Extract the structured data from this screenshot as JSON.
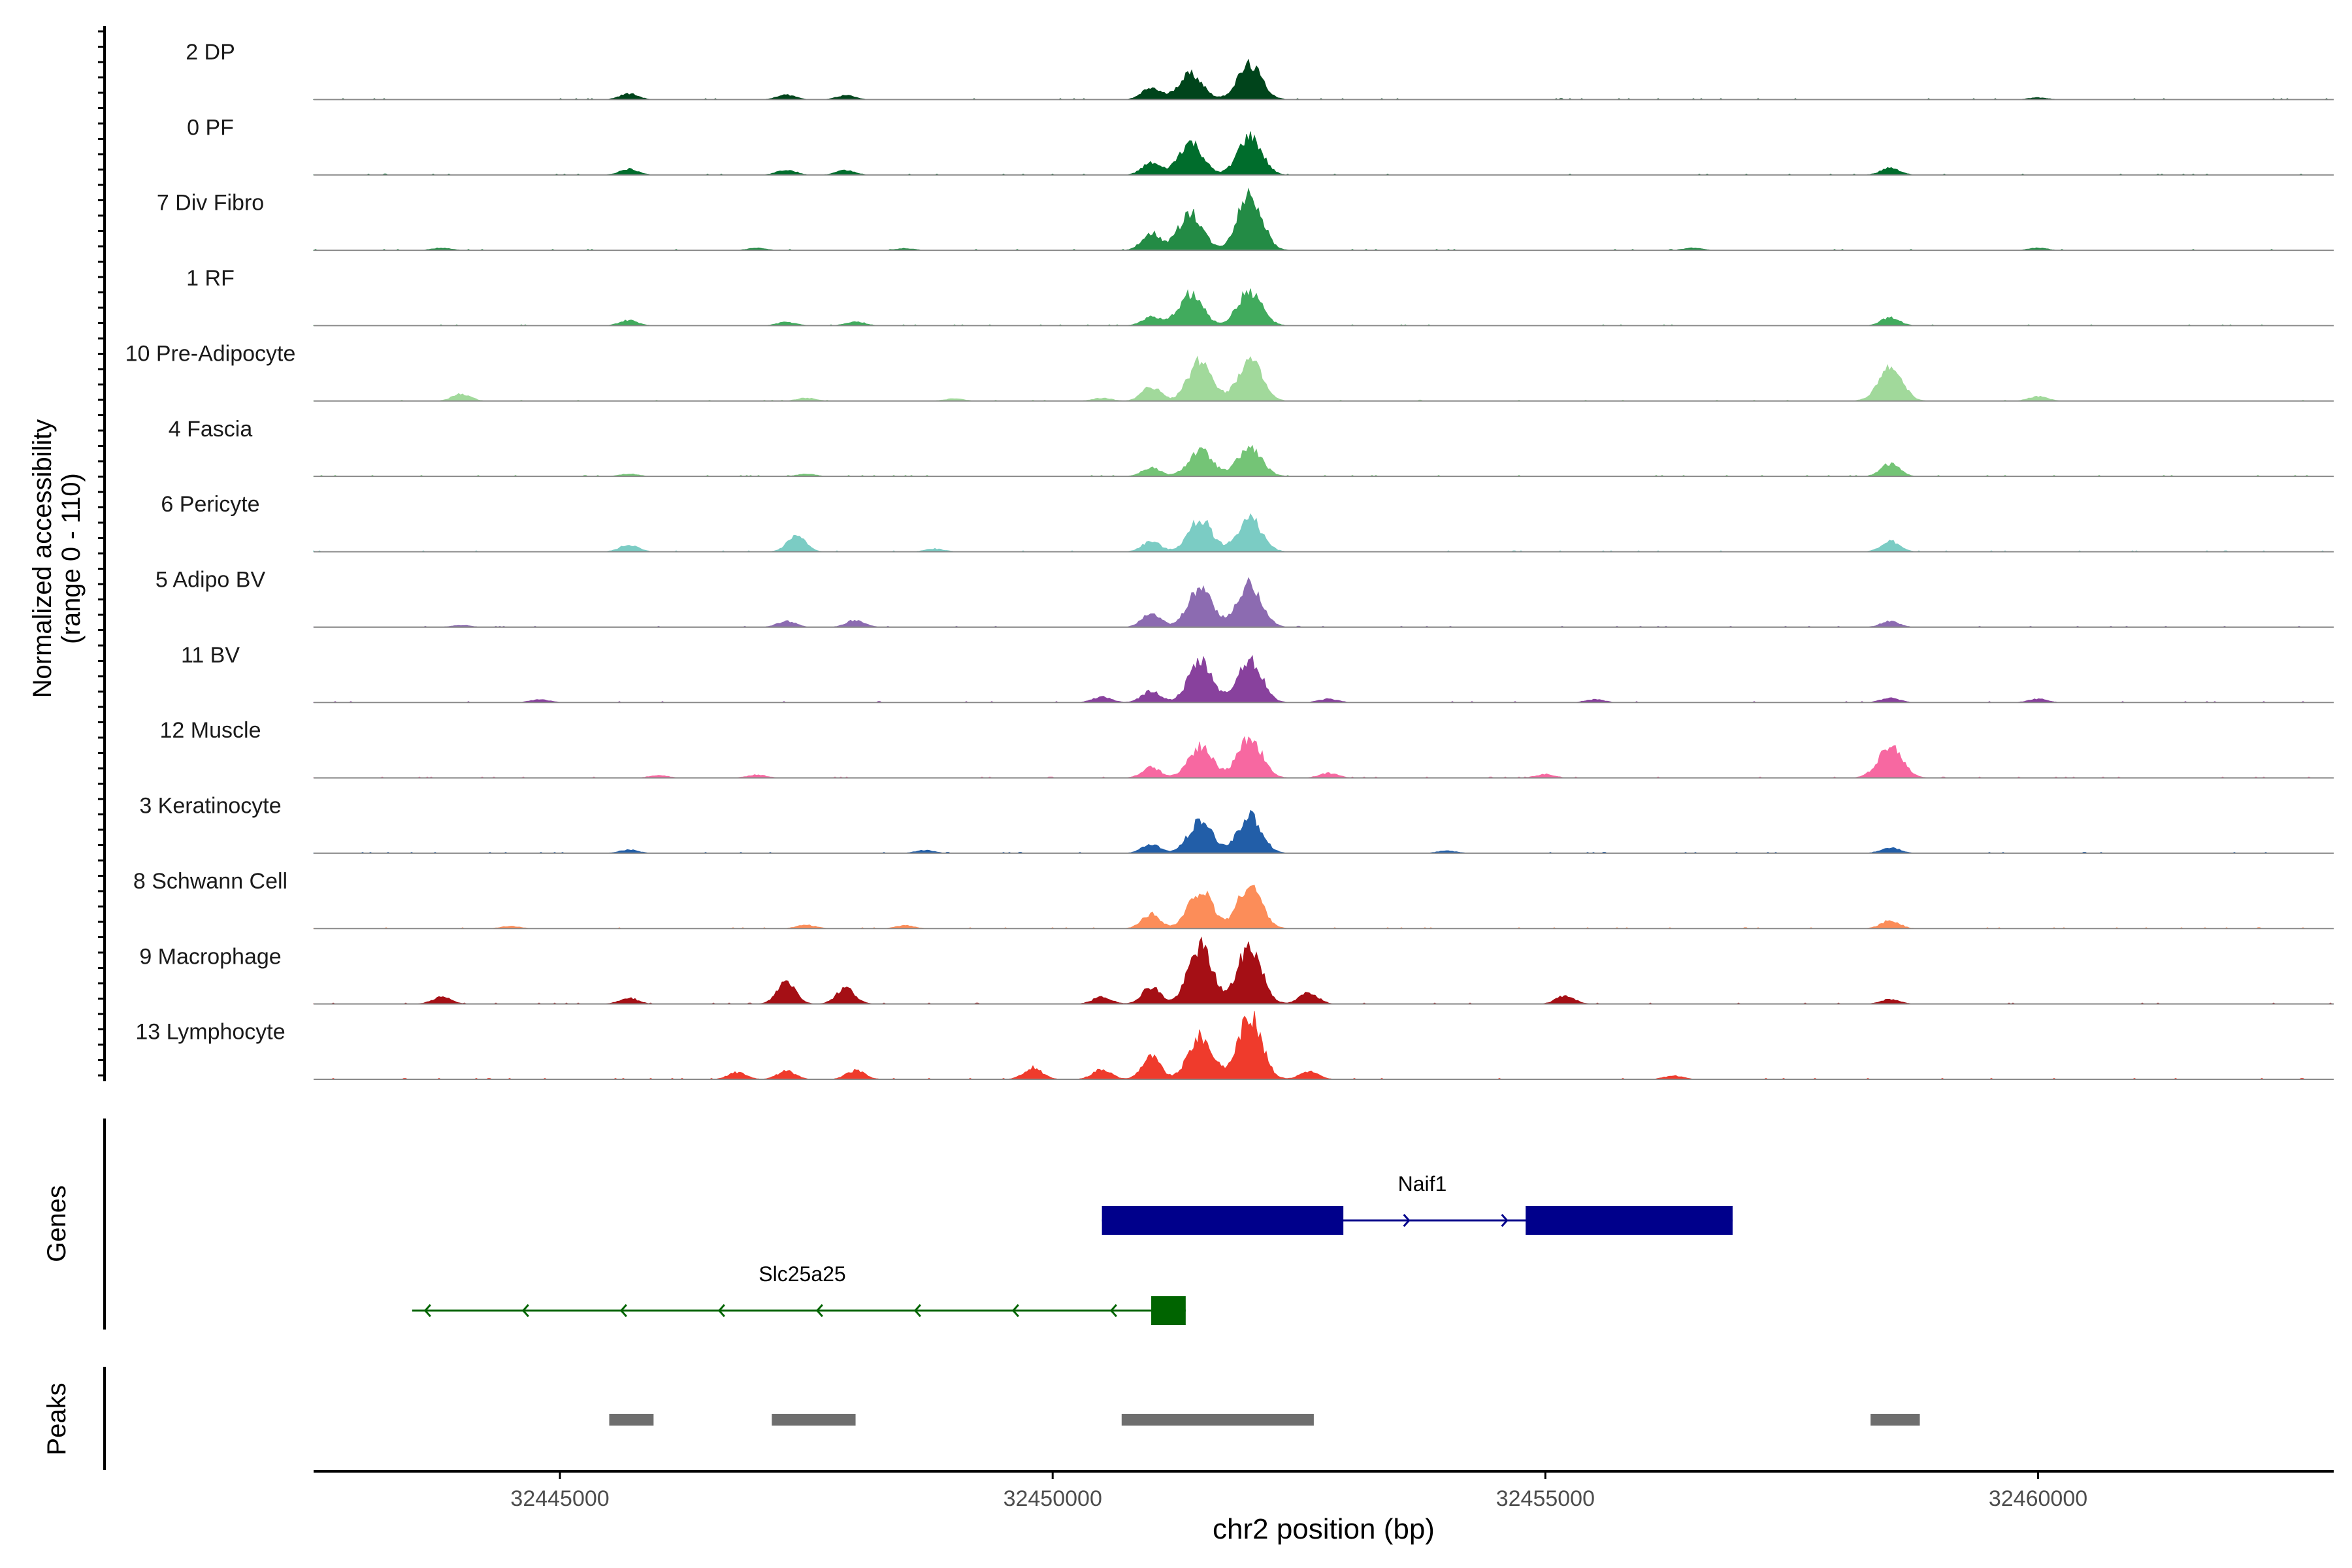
{
  "chart_data": {
    "type": "area",
    "title": "",
    "y_axis_title": [
      "Normalized accessibility",
      "(range 0 - 110)"
    ],
    "ylim": [
      0,
      110
    ],
    "xlabel": "chr2 position (bp)",
    "xlim": [
      32442500,
      32463000
    ],
    "x_ticks": [
      32445000,
      32450000,
      32455000,
      32460000
    ],
    "x_tick_labels": [
      "32445000",
      "32450000",
      "32455000",
      "32460000"
    ],
    "tracks": [
      {
        "name": "2 DP",
        "color": "#00441b",
        "peaks": [
          [
            32445700,
            10
          ],
          [
            32447300,
            8
          ],
          [
            32447900,
            7
          ],
          [
            32451000,
            20
          ],
          [
            32451400,
            45
          ],
          [
            32452000,
            60
          ],
          [
            32460000,
            3
          ]
        ]
      },
      {
        "name": "0 PF",
        "color": "#006d2c",
        "peaks": [
          [
            32445700,
            10
          ],
          [
            32447300,
            9
          ],
          [
            32447900,
            8
          ],
          [
            32451000,
            20
          ],
          [
            32451400,
            55
          ],
          [
            32452000,
            65
          ],
          [
            32458500,
            12
          ]
        ]
      },
      {
        "name": "7 Div Fibro",
        "color": "#238b45",
        "peaks": [
          [
            32443800,
            4
          ],
          [
            32447000,
            4
          ],
          [
            32448500,
            3
          ],
          [
            32451000,
            30
          ],
          [
            32451400,
            65
          ],
          [
            32452000,
            100
          ],
          [
            32456500,
            4
          ],
          [
            32460000,
            4
          ]
        ]
      },
      {
        "name": "1 RF",
        "color": "#41ab5d",
        "peaks": [
          [
            32445700,
            9
          ],
          [
            32447300,
            6
          ],
          [
            32448000,
            7
          ],
          [
            32451000,
            15
          ],
          [
            32451400,
            55
          ],
          [
            32452000,
            60
          ],
          [
            32458500,
            14
          ]
        ]
      },
      {
        "name": "10 Pre-Adipocyte",
        "color": "#a1d99b",
        "peaks": [
          [
            32444000,
            12
          ],
          [
            32447500,
            5
          ],
          [
            32449000,
            4
          ],
          [
            32450500,
            5
          ],
          [
            32451000,
            25
          ],
          [
            32451500,
            70
          ],
          [
            32452000,
            70
          ],
          [
            32458500,
            55
          ],
          [
            32460000,
            8
          ]
        ]
      },
      {
        "name": "4 Fascia",
        "color": "#74c476",
        "peaks": [
          [
            32445700,
            4
          ],
          [
            32447500,
            4
          ],
          [
            32451000,
            15
          ],
          [
            32451500,
            45
          ],
          [
            32452000,
            50
          ],
          [
            32458500,
            22
          ]
        ]
      },
      {
        "name": "6 Pericyte",
        "color": "#7bccc4",
        "peaks": [
          [
            32445700,
            12
          ],
          [
            32447400,
            28
          ],
          [
            32448800,
            5
          ],
          [
            32451000,
            18
          ],
          [
            32451500,
            55
          ],
          [
            32452000,
            58
          ],
          [
            32458500,
            18
          ]
        ]
      },
      {
        "name": "5 Adipo BV",
        "color": "#8c6bb1",
        "peaks": [
          [
            32444000,
            3
          ],
          [
            32447300,
            10
          ],
          [
            32448000,
            12
          ],
          [
            32451000,
            25
          ],
          [
            32451500,
            70
          ],
          [
            32452000,
            75
          ],
          [
            32458500,
            10
          ]
        ]
      },
      {
        "name": "11 BV",
        "color": "#88419d",
        "peaks": [
          [
            32444800,
            5
          ],
          [
            32450500,
            10
          ],
          [
            32451000,
            20
          ],
          [
            32451500,
            70
          ],
          [
            32452000,
            75
          ],
          [
            32452800,
            6
          ],
          [
            32455500,
            5
          ],
          [
            32458500,
            8
          ],
          [
            32460000,
            6
          ]
        ]
      },
      {
        "name": "12 Muscle",
        "color": "#f768a1",
        "peaks": [
          [
            32446000,
            4
          ],
          [
            32447000,
            5
          ],
          [
            32451000,
            18
          ],
          [
            32451500,
            55
          ],
          [
            32452000,
            70
          ],
          [
            32452800,
            8
          ],
          [
            32455000,
            6
          ],
          [
            32458500,
            55
          ]
        ]
      },
      {
        "name": "3 Keratinocyte",
        "color": "#225ea8",
        "peaks": [
          [
            32445700,
            6
          ],
          [
            32448700,
            5
          ],
          [
            32451000,
            15
          ],
          [
            32451500,
            55
          ],
          [
            32452000,
            65
          ],
          [
            32454000,
            4
          ],
          [
            32458500,
            10
          ]
        ]
      },
      {
        "name": "8 Schwann Cell",
        "color": "#fc8d59",
        "peaks": [
          [
            32444500,
            4
          ],
          [
            32447500,
            6
          ],
          [
            32448500,
            5
          ],
          [
            32451000,
            25
          ],
          [
            32451500,
            65
          ],
          [
            32452000,
            75
          ],
          [
            32458500,
            14
          ]
        ]
      },
      {
        "name": "9 Macrophage",
        "color": "#a50f15",
        "peaks": [
          [
            32443800,
            12
          ],
          [
            32445700,
            10
          ],
          [
            32447300,
            40
          ],
          [
            32447900,
            28
          ],
          [
            32450500,
            12
          ],
          [
            32451000,
            30
          ],
          [
            32451500,
            100
          ],
          [
            32452000,
            100
          ],
          [
            32452600,
            20
          ],
          [
            32455200,
            14
          ],
          [
            32458500,
            8
          ]
        ]
      },
      {
        "name": "13 Lymphocyte",
        "color": "#ef3b2c",
        "peaks": [
          [
            32446800,
            12
          ],
          [
            32447300,
            14
          ],
          [
            32448000,
            15
          ],
          [
            32449800,
            20
          ],
          [
            32450500,
            18
          ],
          [
            32451000,
            40
          ],
          [
            32451500,
            75
          ],
          [
            32452000,
            110
          ],
          [
            32452600,
            14
          ],
          [
            32456300,
            6
          ]
        ]
      }
    ],
    "genes": {
      "label": "Genes",
      "items": [
        {
          "name": "Naif1",
          "strand": "+",
          "color": "#00008b",
          "start": 32450500,
          "end": 32456900,
          "exons": [
            [
              32450500,
              32452950
            ],
            [
              32454800,
              32456900
            ]
          ]
        },
        {
          "name": "Slc25a25",
          "strand": "-",
          "color": "#006400",
          "start": 32443500,
          "end": 32451350,
          "exons": [
            [
              32451000,
              32451350
            ]
          ]
        }
      ]
    },
    "peaks_track": {
      "label": "Peaks",
      "color": "#6e6e6e",
      "regions": [
        [
          32445500,
          32445950
        ],
        [
          32447150,
          32448000
        ],
        [
          32450700,
          32452650
        ],
        [
          32458300,
          32458800
        ]
      ]
    }
  }
}
